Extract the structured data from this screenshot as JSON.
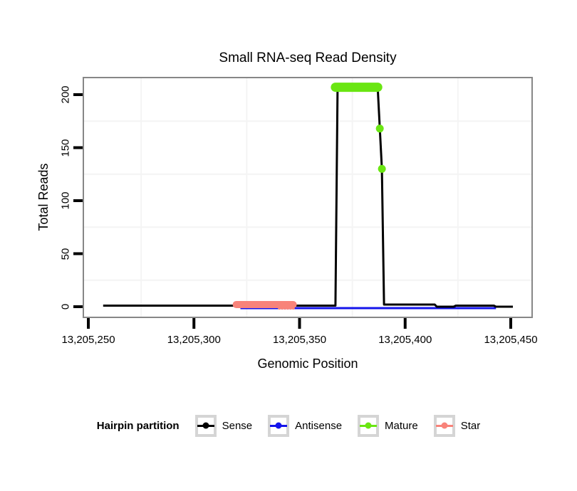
{
  "figure_title": "Small RNA-seq Read Density",
  "axes": {
    "x": {
      "label": "Genomic Position",
      "ticks": [
        "13,205,250",
        "13,205,300",
        "13,205,350",
        "13,205,400",
        "13,205,450"
      ]
    },
    "y": {
      "label": "Total Reads",
      "ticks": [
        "0",
        "50",
        "100",
        "150",
        "200"
      ]
    }
  },
  "legend": {
    "title": "Hairpin partition",
    "items": [
      {
        "label": "Sense",
        "color": "#000000"
      },
      {
        "label": "Antisense",
        "color": "#1414EB"
      },
      {
        "label": "Mature",
        "color": "#6AE612"
      },
      {
        "label": "Star",
        "color": "#F8837A"
      }
    ]
  },
  "chart_data": {
    "type": "line",
    "title": "Small RNA-seq Read Density",
    "xlabel": "Genomic Position",
    "ylabel": "Total Reads",
    "xlim": [
      13205247,
      13205460
    ],
    "ylim": [
      -11,
      217
    ],
    "x_ticks": [
      13205250,
      13205300,
      13205350,
      13205400,
      13205450
    ],
    "y_ticks": [
      0,
      50,
      100,
      150,
      200
    ],
    "grid": "faint-minor-gridlines",
    "minor_grid_x": [
      13205275,
      13205325,
      13205375,
      13205425
    ],
    "minor_grid_y": [
      25,
      75,
      125,
      175
    ],
    "legend_position": "bottom",
    "legend_title": "Hairpin partition",
    "series": [
      {
        "name": "Sense",
        "type": "line",
        "color": "#000000",
        "points": [
          [
            13205257,
            1
          ],
          [
            13205367,
            1
          ],
          [
            13205368,
            207
          ],
          [
            13205387,
            207
          ],
          [
            13205388,
            168
          ],
          [
            13205389,
            130
          ],
          [
            13205390,
            2
          ],
          [
            13205414,
            2
          ],
          [
            13205415,
            0
          ],
          [
            13205423,
            0
          ],
          [
            13205424,
            1
          ],
          [
            13205442,
            1
          ],
          [
            13205443,
            0
          ],
          [
            13205451,
            0
          ]
        ]
      },
      {
        "name": "Antisense",
        "type": "line",
        "color": "#1414EB",
        "points": [
          [
            13205322,
            0
          ],
          [
            13205443,
            0
          ]
        ]
      },
      {
        "name": "Mature",
        "type": "points",
        "color": "#6AE612",
        "plateau": {
          "from": 13205367,
          "to": 13205387,
          "reads": 207
        },
        "points": [
          [
            13205388,
            168
          ],
          [
            13205389,
            130
          ]
        ]
      },
      {
        "name": "Star",
        "type": "points",
        "color": "#F8837A",
        "plateau": {
          "from": 13205320,
          "to": 13205347,
          "reads": 2
        },
        "low_dots": {
          "from": 13205340.5,
          "to": 13205347,
          "reads": 0,
          "count": 6
        }
      }
    ]
  }
}
